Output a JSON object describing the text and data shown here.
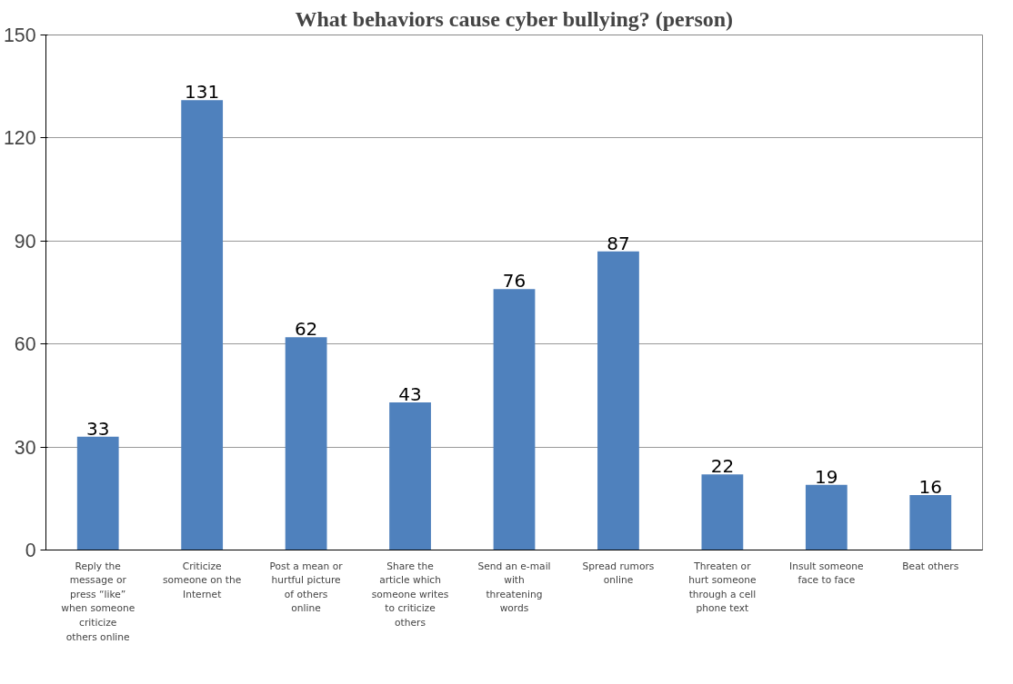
{
  "chart_data": {
    "type": "bar",
    "title": "What behaviors cause cyber bullying? (person)",
    "categories": [
      "Reply the message or press “like” when someone criticize others online",
      "Criticize someone on the Internet",
      "Post a mean or hurtful picture of others online",
      "Share the article which someone writes to criticize others",
      "Send an e-mail with threatening words",
      "Spread rumors online",
      "Threaten or hurt someone through a cell phone text",
      "Insult someone face to face",
      "Beat others"
    ],
    "values": [
      33,
      131,
      62,
      43,
      76,
      87,
      22,
      19,
      16
    ],
    "color": "#4f81bd",
    "ylim": [
      0,
      150
    ],
    "yticks": [
      0,
      30,
      60,
      90,
      120,
      150
    ],
    "grid": "y",
    "data_labels": true
  }
}
